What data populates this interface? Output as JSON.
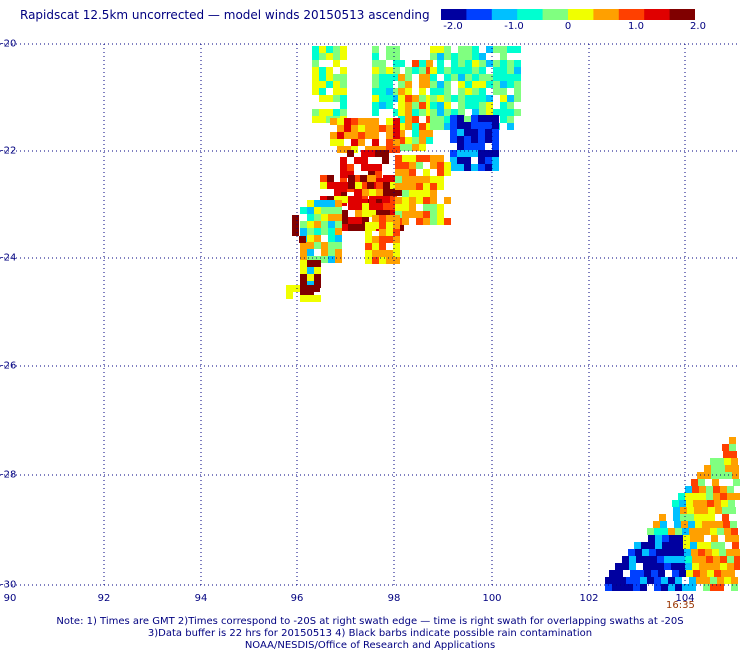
{
  "title": "Rapidscat 12.5km uncorrected — model winds 20150513 ascending",
  "colorbar": {
    "ticks": [
      "-2.0",
      "-1.0",
      "0",
      "1.0",
      "2.0"
    ],
    "colors": [
      "#0000a0",
      "#0040ff",
      "#00c0ff",
      "#00ffd0",
      "#80ff80",
      "#f0ff00",
      "#ffa000",
      "#ff4000",
      "#e00000",
      "#800000"
    ]
  },
  "axes": {
    "lat_labels": [
      "-20",
      "-22",
      "-24",
      "-26",
      "-28",
      "-30"
    ],
    "lon_labels": [
      "90",
      "92",
      "94",
      "96",
      "98",
      "100",
      "102",
      "104"
    ],
    "lat_range": [
      -30,
      -20
    ],
    "lon_range": [
      90,
      105
    ],
    "grid": "dotted"
  },
  "time_label": "16:35",
  "notes": [
    "Note: 1) Times are GMT 2)Times correspond to -20S at right swath edge — time is right swath for overlapping swaths at -20S",
    "3)Data buffer is 22 hrs for 20150513 4) Black barbs indicate possible rain contamination",
    "NOAA/NESDIS/Office of Research and Applications"
  ]
}
